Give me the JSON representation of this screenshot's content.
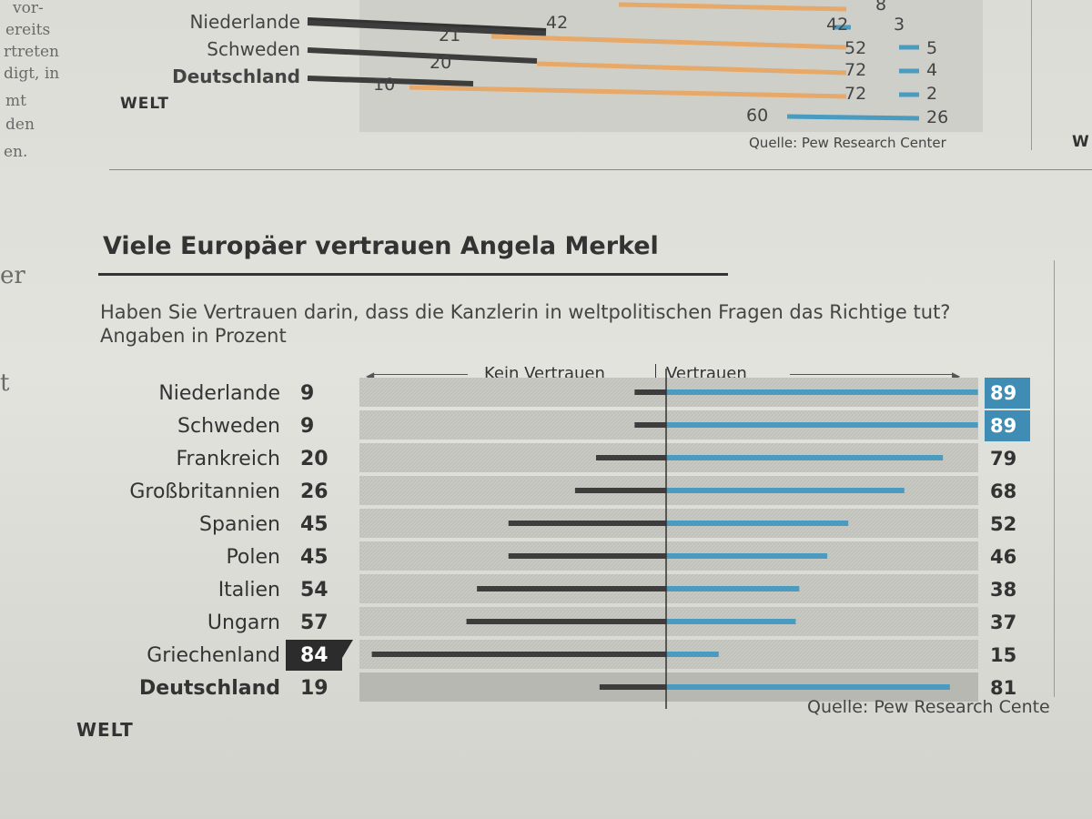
{
  "side_text": [
    "vor-",
    "ereits",
    "rtreten",
    "digt, in",
    "mt",
    "den",
    "en.",
    "er",
    "t"
  ],
  "top_chart": {
    "rows": [
      {
        "label": "Niederlande",
        "left": "21",
        "mid": "42",
        "right_a": "42",
        "right_b": "3"
      },
      {
        "label": "Schweden",
        "left": "20",
        "right_a": "52",
        "right_b": "5"
      },
      {
        "label": "Deutschland",
        "left": "10",
        "right_a": "72",
        "right_b": "4",
        "right_c": "72",
        "right_d": "2"
      }
    ],
    "extra": {
      "a": "60",
      "b": "26",
      "c": "8"
    },
    "brand": "WELT",
    "source": "Quelle: Pew Research Center"
  },
  "right_edge_brand": "W",
  "headline": "Viele Europäer vertrauen Angela Merkel",
  "subtitle": "Haben Sie Vertrauen darin, dass die Kanzlerin in weltpolitischen Fragen das Richtige tut? Angaben in Prozent",
  "axis": {
    "left": "Kein Vertrauen",
    "right": "Vertrauen"
  },
  "brand": "WELT",
  "source": "Quelle: Pew Research Cente",
  "colors": {
    "negative": "#3d3d3d",
    "positive": "#4a9bc0",
    "highlight_box": "#2c2c2c",
    "highlight_blue": "#3f8db5"
  },
  "chart_data": {
    "type": "bar",
    "title": "Viele Europäer vertrauen Angela Merkel",
    "categories": [
      "Niederlande",
      "Schweden",
      "Frankreich",
      "Großbritannien",
      "Spanien",
      "Polen",
      "Italien",
      "Ungarn",
      "Griechenland",
      "Deutschland"
    ],
    "series": [
      {
        "name": "Kein Vertrauen",
        "values": [
          9,
          9,
          20,
          26,
          45,
          45,
          54,
          57,
          84,
          19
        ]
      },
      {
        "name": "Vertrauen",
        "values": [
          89,
          89,
          79,
          68,
          52,
          46,
          38,
          37,
          15,
          81
        ]
      }
    ],
    "xlabel": "",
    "ylabel": "Angaben in Prozent",
    "highlight_max": {
      "Kein Vertrauen": "Griechenland",
      "Vertrauen": [
        "Niederlande",
        "Schweden"
      ]
    }
  }
}
